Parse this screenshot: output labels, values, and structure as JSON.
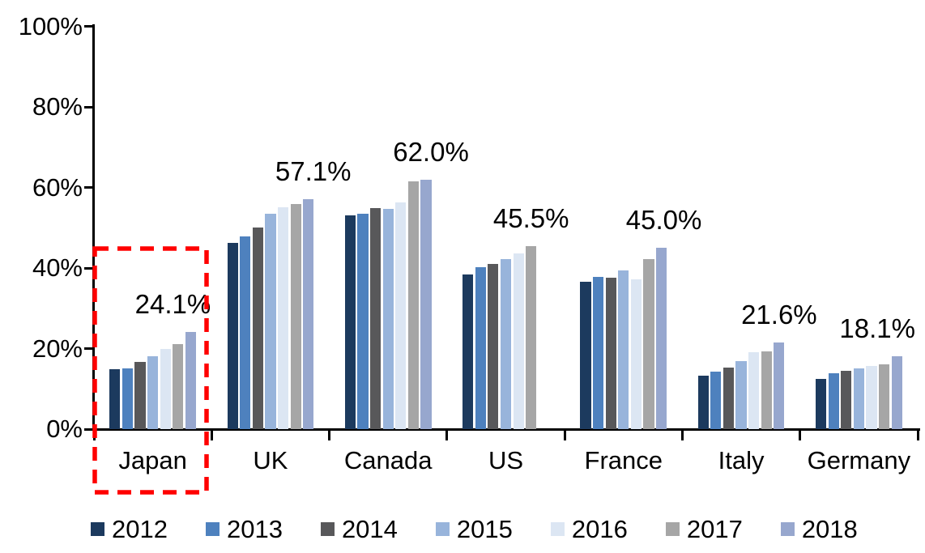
{
  "chart_data": {
    "type": "bar",
    "title": "",
    "xlabel": "",
    "ylabel": "",
    "categories": [
      "Japan",
      "UK",
      "Canada",
      "US",
      "France",
      "Italy",
      "Germany"
    ],
    "series": [
      {
        "name": "2012",
        "color": "#1C3A5E",
        "values": [
          14.9,
          46.3,
          53.0,
          38.3,
          36.5,
          13.2,
          12.5
        ]
      },
      {
        "name": "2013",
        "color": "#4E81BE",
        "values": [
          15.0,
          47.9,
          53.4,
          40.2,
          37.7,
          14.2,
          13.9
        ]
      },
      {
        "name": "2014",
        "color": "#58585A",
        "values": [
          16.7,
          50.0,
          54.9,
          41.1,
          37.6,
          15.3,
          14.4
        ]
      },
      {
        "name": "2015",
        "color": "#98B4DB",
        "values": [
          18.1,
          53.4,
          54.6,
          42.3,
          39.3,
          16.8,
          15.0
        ]
      },
      {
        "name": "2016",
        "color": "#DCE6F3",
        "values": [
          20.0,
          55.0,
          56.2,
          43.7,
          37.2,
          19.1,
          15.6
        ]
      },
      {
        "name": "2017",
        "color": "#A6A6A6",
        "values": [
          21.1,
          55.9,
          61.6,
          45.5,
          42.3,
          19.3,
          16.0
        ]
      },
      {
        "name": "2018",
        "color": "#97A7CE",
        "values": [
          24.1,
          57.1,
          62.0,
          null,
          45.0,
          21.6,
          18.1
        ]
      }
    ],
    "data_labels": [
      {
        "category": "Japan",
        "text": "24.1%"
      },
      {
        "category": "UK",
        "text": "57.1%"
      },
      {
        "category": "Canada",
        "text": "62.0%"
      },
      {
        "category": "US",
        "text": "45.5%"
      },
      {
        "category": "France",
        "text": "45.0%"
      },
      {
        "category": "Italy",
        "text": "21.6%"
      },
      {
        "category": "Germany",
        "text": "18.1%"
      }
    ],
    "yticks": [
      "0%",
      "20%",
      "40%",
      "60%",
      "80%",
      "100%"
    ],
    "ylim": [
      0,
      100
    ],
    "grid": false,
    "legend_position": "bottom",
    "axis_color": "#000000",
    "annotations": [
      {
        "type": "highlight-box",
        "target": "Japan",
        "color": "#FF0000",
        "style": "dashed"
      }
    ]
  }
}
